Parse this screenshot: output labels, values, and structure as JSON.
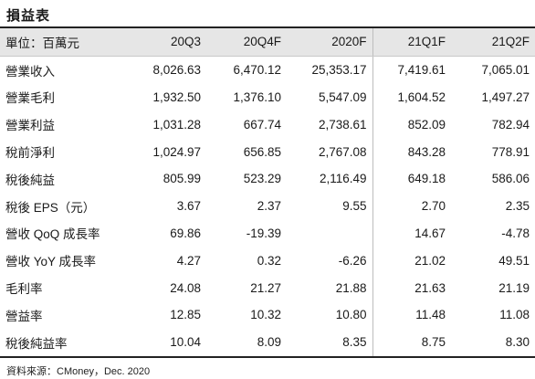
{
  "title": "損益表",
  "header": {
    "unit_label": "單位：百萬元",
    "columns": [
      "20Q3",
      "20Q4F",
      "2020F",
      "21Q1F",
      "21Q2F"
    ]
  },
  "rows": [
    {
      "label": "營業收入",
      "values": [
        "8,026.63",
        "6,470.12",
        "25,353.17",
        "7,419.61",
        "7,065.01"
      ]
    },
    {
      "label": "營業毛利",
      "values": [
        "1,932.50",
        "1,376.10",
        "5,547.09",
        "1,604.52",
        "1,497.27"
      ]
    },
    {
      "label": "營業利益",
      "values": [
        "1,031.28",
        "667.74",
        "2,738.61",
        "852.09",
        "782.94"
      ]
    },
    {
      "label": "稅前淨利",
      "values": [
        "1,024.97",
        "656.85",
        "2,767.08",
        "843.28",
        "778.91"
      ]
    },
    {
      "label": "稅後純益",
      "values": [
        "805.99",
        "523.29",
        "2,116.49",
        "649.18",
        "586.06"
      ]
    },
    {
      "label": "稅後 EPS（元）",
      "values": [
        "3.67",
        "2.37",
        "9.55",
        "2.70",
        "2.35"
      ]
    },
    {
      "label": "營收 QoQ 成長率",
      "values": [
        "69.86",
        "-19.39",
        "",
        "14.67",
        "-4.78"
      ]
    },
    {
      "label": "營收 YoY 成長率",
      "values": [
        "4.27",
        "0.32",
        "-6.26",
        "21.02",
        "49.51"
      ]
    },
    {
      "label": "毛利率",
      "values": [
        "24.08",
        "21.27",
        "21.88",
        "21.63",
        "21.19"
      ]
    },
    {
      "label": "營益率",
      "values": [
        "12.85",
        "10.32",
        "10.80",
        "11.48",
        "11.08"
      ]
    },
    {
      "label": "稅後純益率",
      "values": [
        "10.04",
        "8.09",
        "8.35",
        "8.75",
        "8.30"
      ]
    }
  ],
  "source": "資料來源：CMoney，Dec. 2020"
}
